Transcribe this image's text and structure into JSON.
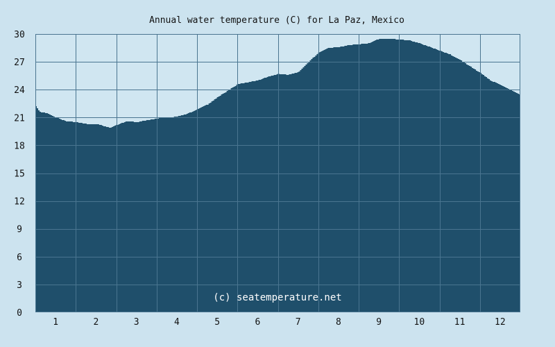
{
  "chart_data": {
    "type": "area",
    "title": "Annual water temperature (C) for La Paz, Mexico",
    "xlabel": "",
    "ylabel": "",
    "credit": "(c) seatemperature.net",
    "x_tick_labels": [
      "1",
      "2",
      "3",
      "4",
      "5",
      "6",
      "7",
      "8",
      "9",
      "10",
      "11",
      "12"
    ],
    "y_ticks": [
      0,
      3,
      6,
      9,
      12,
      15,
      18,
      21,
      24,
      27,
      30
    ],
    "xlim": [
      0.5,
      12.5
    ],
    "ylim": [
      0,
      30
    ],
    "grid": true,
    "x": [
      0.5,
      0.6,
      0.75,
      1.0,
      1.25,
      1.5,
      1.75,
      2.0,
      2.25,
      2.35,
      2.5,
      2.75,
      3.0,
      3.25,
      3.5,
      3.75,
      4.0,
      4.25,
      4.5,
      4.75,
      5.0,
      5.25,
      5.5,
      5.75,
      6.0,
      6.25,
      6.5,
      6.75,
      7.0,
      7.25,
      7.5,
      7.75,
      8.0,
      8.25,
      8.5,
      8.75,
      9.0,
      9.25,
      9.5,
      9.75,
      10.0,
      10.25,
      10.5,
      10.75,
      11.0,
      11.25,
      11.5,
      11.75,
      12.0,
      12.25,
      12.5
    ],
    "series": [
      {
        "values": [
          22.2,
          21.6,
          21.5,
          21.0,
          20.6,
          20.5,
          20.3,
          20.3,
          20.0,
          19.9,
          20.2,
          20.6,
          20.5,
          20.7,
          20.9,
          21.0,
          21.1,
          21.4,
          21.9,
          22.4,
          23.2,
          23.9,
          24.6,
          24.8,
          25.0,
          25.4,
          25.7,
          25.6,
          25.9,
          27.0,
          28.0,
          28.5,
          28.6,
          28.8,
          28.9,
          29.0,
          29.5,
          29.5,
          29.4,
          29.3,
          29.0,
          28.6,
          28.2,
          27.8,
          27.2,
          26.5,
          25.8,
          25.0,
          24.5,
          24.0,
          23.4
        ]
      }
    ]
  }
}
